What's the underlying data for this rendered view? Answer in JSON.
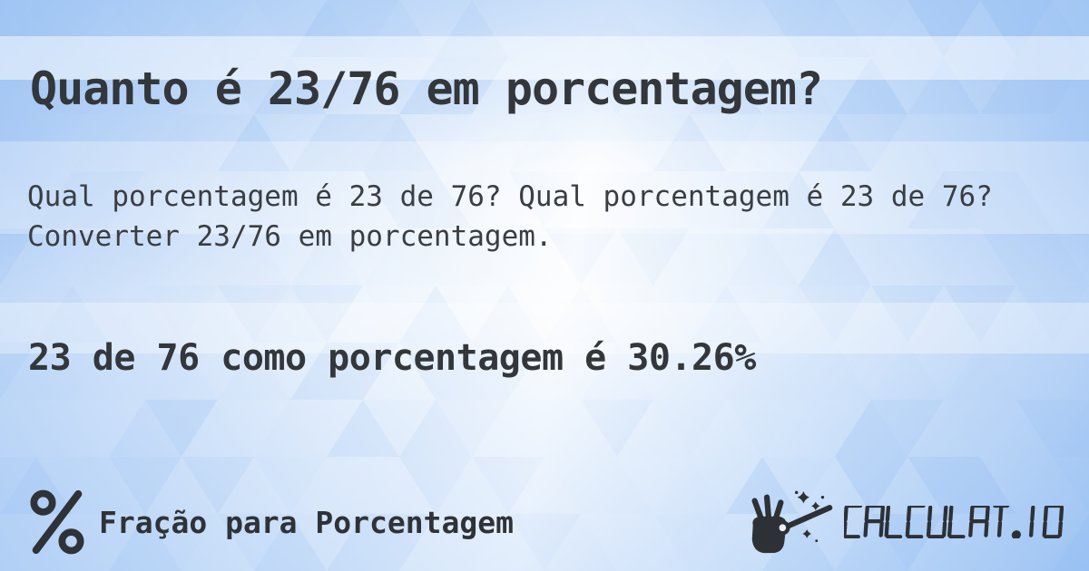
{
  "content": {
    "title": "Quanto é 23/76 em porcentagem?",
    "description": "Qual porcentagem é 23 de 76? Qual porcentagem é 23 de 76? Converter 23/76 em porcentagem.",
    "answer": "23 de 76 como porcentagem é 30.26%"
  },
  "footer": {
    "category_label": "Fração para Porcentagem",
    "category_icon": "percent-icon",
    "brand": "CALCULAT.IO",
    "brand_icon": "magic-wand-icon",
    "brand_text_style": "seven-segment"
  },
  "colors": {
    "text_dark": "#33373b",
    "logo_dark": "#2d3136",
    "background_base": "#e9f1fc",
    "triangle_blue": "#8fb9f0",
    "band_white": "rgba(255,255,255,0.5)"
  }
}
